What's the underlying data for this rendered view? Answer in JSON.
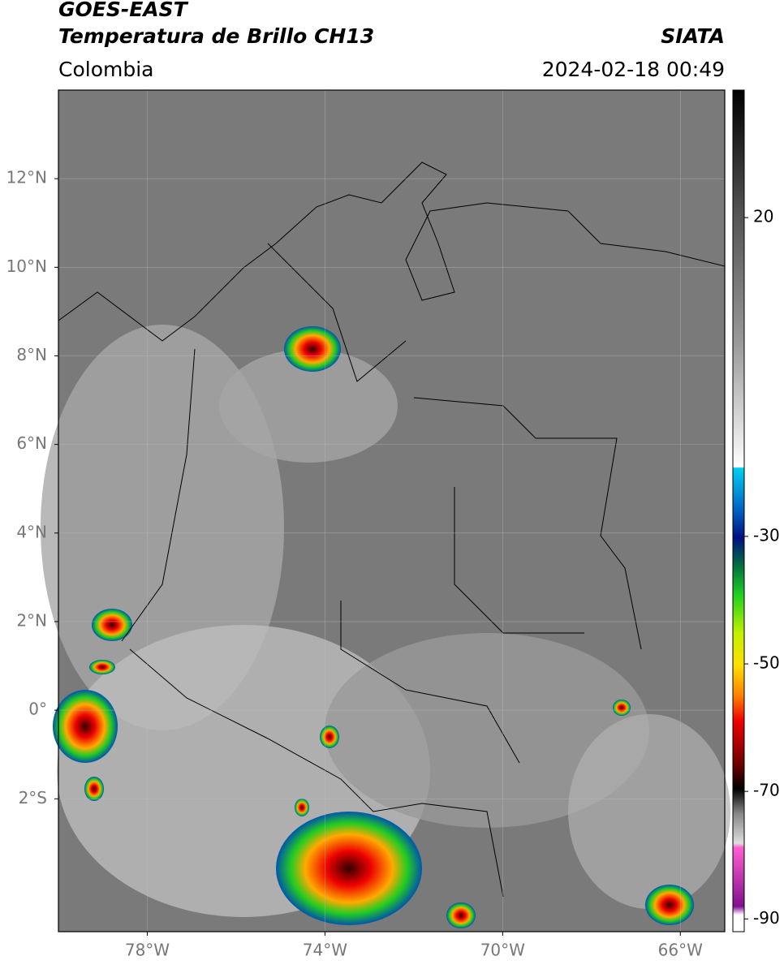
{
  "header": {
    "title": "GOES-EAST",
    "subtitle": "Temperatura de Brillo CH13",
    "source": "SIATA",
    "region": "Colombia",
    "timestamp": "2024-02-18 00:49"
  },
  "map": {
    "xlim": [
      -80,
      -65
    ],
    "ylim": [
      -5,
      14
    ],
    "xticks": [
      {
        "value": -78,
        "label": "78°W"
      },
      {
        "value": -74,
        "label": "74°W"
      },
      {
        "value": -70,
        "label": "70°W"
      },
      {
        "value": -66,
        "label": "66°W"
      }
    ],
    "yticks": [
      {
        "value": -2,
        "label": "2°S"
      },
      {
        "value": 0,
        "label": "0°"
      },
      {
        "value": 2,
        "label": "2°N"
      },
      {
        "value": 4,
        "label": "4°N"
      },
      {
        "value": 6,
        "label": "6°N"
      },
      {
        "value": 8,
        "label": "8°N"
      },
      {
        "value": 10,
        "label": "10°N"
      },
      {
        "value": 12,
        "label": "12°N"
      }
    ]
  },
  "colorbar": {
    "lim": [
      -92,
      40
    ],
    "ticks": [
      20,
      -30,
      -50,
      -70,
      -90
    ]
  }
}
